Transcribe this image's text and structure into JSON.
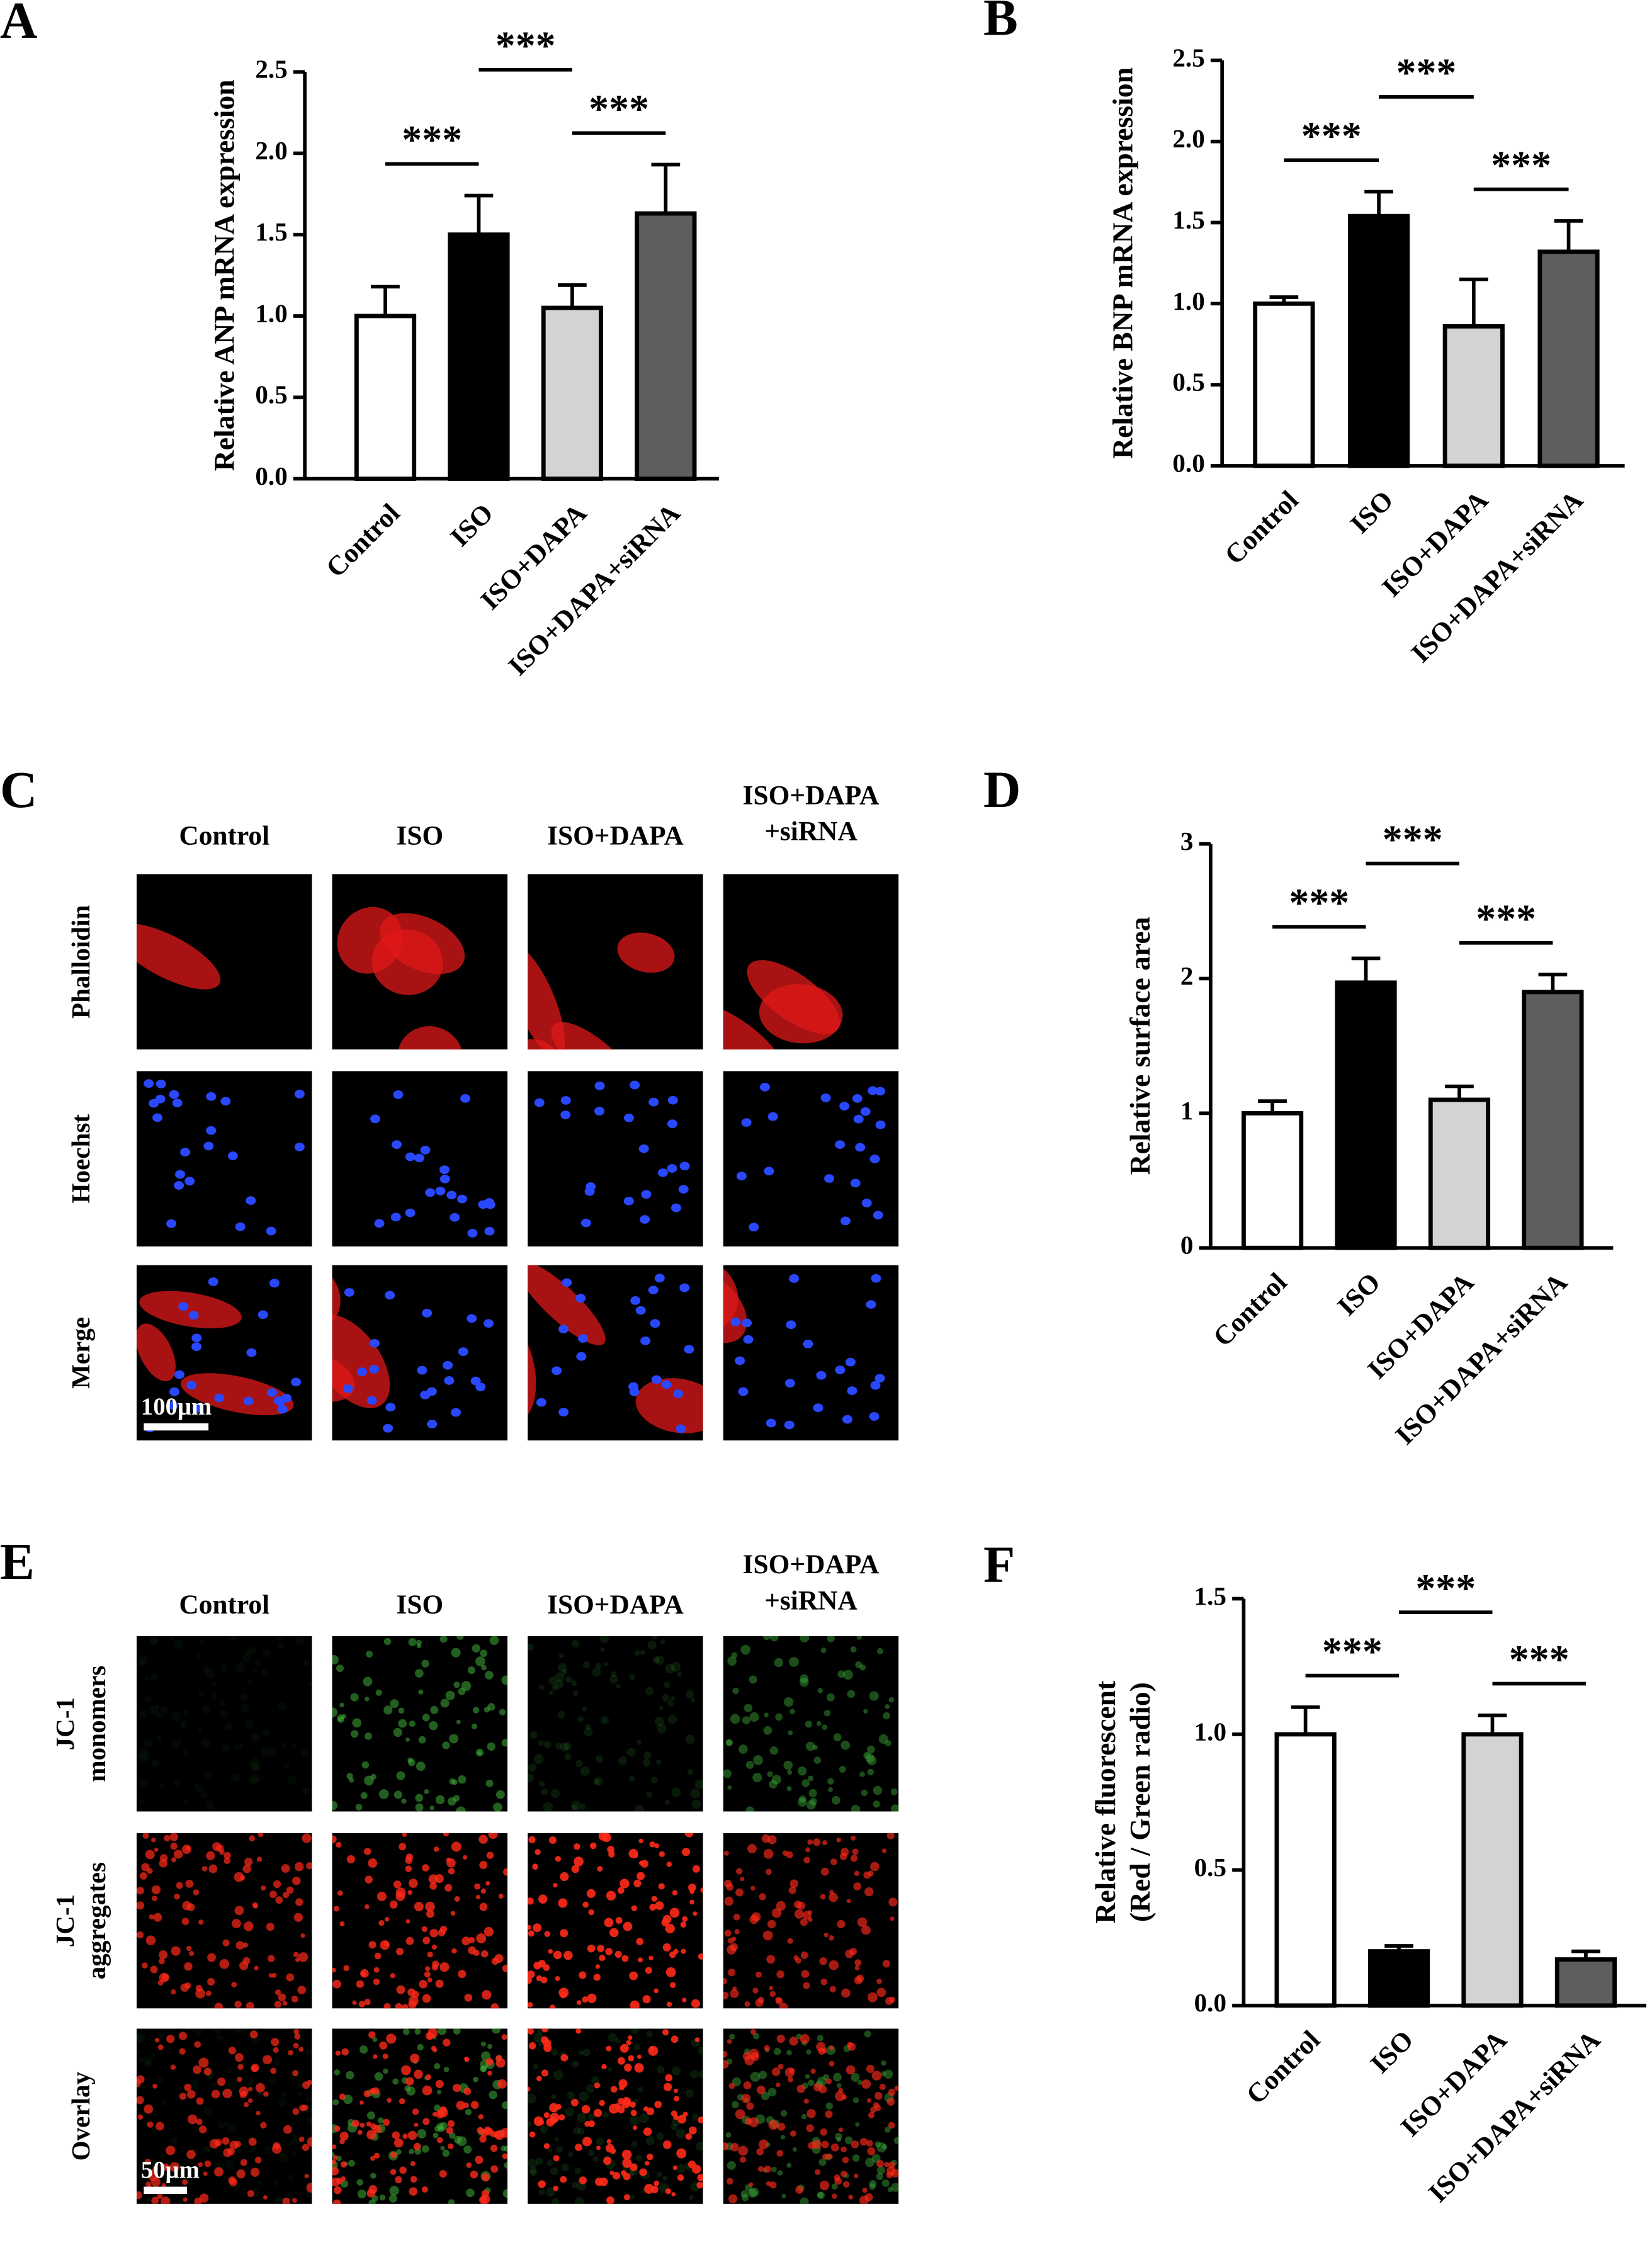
{
  "chart_data": [
    {
      "type": "bar",
      "panel": "A",
      "ylabel": "Relative ANP mRNA expression",
      "categories": [
        "Control",
        "ISO",
        "ISO+DAPA",
        "ISO+DAPA+siRNA"
      ],
      "values": [
        1.0,
        1.5,
        1.05,
        1.63
      ],
      "errors": [
        0.18,
        0.24,
        0.14,
        0.3
      ],
      "colors": [
        "#ffffff",
        "#000000",
        "#d3d3d3",
        "#5e5e5e"
      ],
      "ylim": [
        0,
        2.5
      ],
      "yticks": [
        {
          "value": 0,
          "label": "0.0"
        },
        0.5,
        {
          "value": 1,
          "label": "1.0"
        },
        1.5,
        {
          "value": 2,
          "label": "2.0"
        },
        2.5
      ],
      "brackets": [
        {
          "pair": [
            0,
            1
          ],
          "label": "***"
        },
        {
          "pair": [
            2,
            3
          ],
          "label": "***"
        },
        {
          "pair": [
            1,
            2
          ],
          "label": "***"
        }
      ]
    },
    {
      "type": "bar",
      "panel": "B",
      "ylabel": "Relative BNP mRNA expression",
      "categories": [
        "Control",
        "ISO",
        "ISO+DAPA",
        "ISO+DAPA+siRNA"
      ],
      "values": [
        1.0,
        1.54,
        0.86,
        1.32
      ],
      "errors": [
        0.04,
        0.15,
        0.29,
        0.19
      ],
      "colors": [
        "#ffffff",
        "#000000",
        "#d3d3d3",
        "#5e5e5e"
      ],
      "ylim": [
        0,
        2.5
      ],
      "yticks": [
        {
          "value": 0,
          "label": "0.0"
        },
        0.5,
        {
          "value": 1,
          "label": "1.0"
        },
        1.5,
        {
          "value": 2,
          "label": "2.0"
        },
        2.5
      ],
      "brackets": [
        {
          "pair": [
            0,
            1
          ],
          "label": "***"
        },
        {
          "pair": [
            2,
            3
          ],
          "label": "***"
        },
        {
          "pair": [
            1,
            2
          ],
          "label": "***"
        }
      ]
    },
    {
      "type": "bar",
      "panel": "D",
      "ylabel": "Relative surface area",
      "categories": [
        "Control",
        "ISO",
        "ISO+DAPA",
        "ISO+DAPA+siRNA"
      ],
      "values": [
        1.0,
        1.97,
        1.1,
        1.9
      ],
      "errors": [
        0.09,
        0.18,
        0.1,
        0.13
      ],
      "colors": [
        "#ffffff",
        "#000000",
        "#d3d3d3",
        "#5e5e5e"
      ],
      "ylim": [
        0,
        3
      ],
      "yticks": [
        0,
        1,
        2,
        3
      ],
      "brackets": [
        {
          "pair": [
            0,
            1
          ],
          "label": "***"
        },
        {
          "pair": [
            2,
            3
          ],
          "label": "***"
        },
        {
          "pair": [
            1,
            2
          ],
          "label": "***"
        }
      ]
    },
    {
      "type": "bar",
      "panel": "F",
      "ylabel": [
        "Relative fluorescent",
        "(Red / Green radio)"
      ],
      "categories": [
        "Control",
        "ISO",
        "ISO+DAPA",
        "ISO+DAPA+siRNA"
      ],
      "values": [
        1.0,
        0.2,
        1.0,
        0.17
      ],
      "errors": [
        0.1,
        0.02,
        0.07,
        0.03
      ],
      "colors": [
        "#ffffff",
        "#000000",
        "#d3d3d3",
        "#5e5e5e"
      ],
      "ylim": [
        0,
        1.5
      ],
      "yticks": [
        {
          "value": 0,
          "label": "0.0"
        },
        0.5,
        {
          "value": 1,
          "label": "1.0"
        },
        1.5
      ],
      "brackets": [
        {
          "pair": [
            0,
            1
          ],
          "label": "***"
        },
        {
          "pair": [
            2,
            3
          ],
          "label": "***"
        },
        {
          "pair": [
            1,
            2
          ],
          "label": "***"
        }
      ]
    }
  ],
  "image_panels": [
    {
      "panel": "C",
      "columns": [
        "Control",
        "ISO",
        "ISO+DAPA",
        [
          "ISO+DAPA",
          "+siRNA"
        ]
      ],
      "rows": [
        "Phalloidin",
        "Hoechst",
        "Merge"
      ],
      "scale_bar": "100μm"
    },
    {
      "panel": "E",
      "columns": [
        "Control",
        "ISO",
        "ISO+DAPA",
        [
          "ISO+DAPA",
          "+siRNA"
        ]
      ],
      "rows": [
        [
          "JC-1",
          "monomers"
        ],
        [
          "JC-1",
          "aggregates"
        ],
        "Overlay"
      ],
      "scale_bar": "50μm"
    }
  ]
}
